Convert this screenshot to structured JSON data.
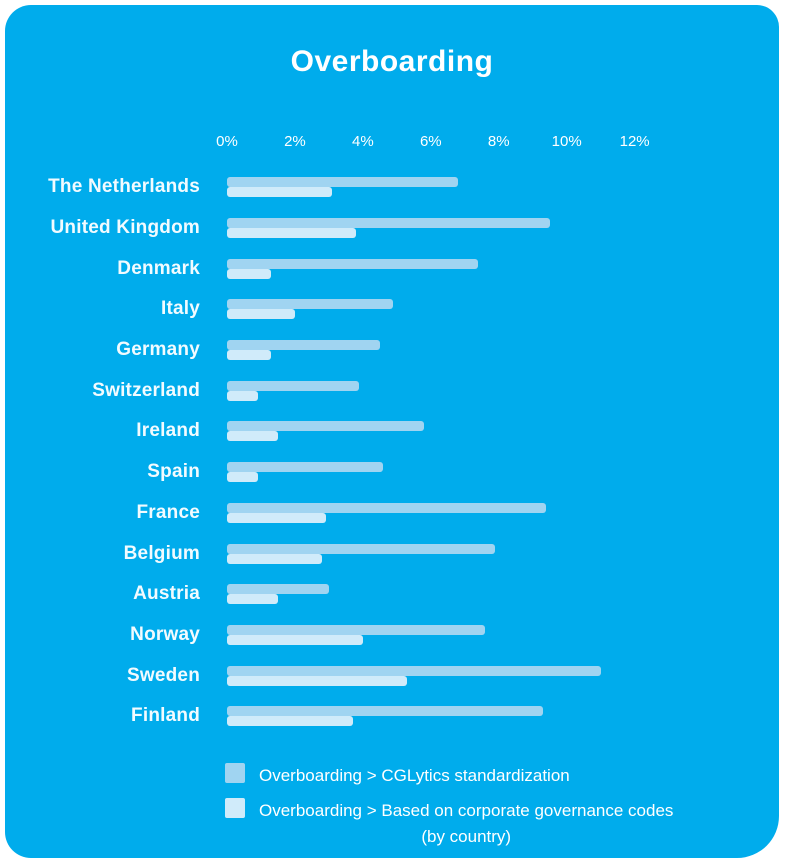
{
  "title": "Overboarding",
  "colors": {
    "background": "#00ACEC",
    "series1": "#A0D4F1",
    "series2": "#D0EBFA",
    "text": "#FFFFFF"
  },
  "chart_data": {
    "type": "bar",
    "orientation": "horizontal",
    "title": "Overboarding",
    "xlabel": "",
    "ylabel": "",
    "x_ticks": [
      "0%",
      "2%",
      "4%",
      "6%",
      "8%",
      "10%",
      "12%"
    ],
    "x_tick_values": [
      0,
      2,
      4,
      6,
      8,
      10,
      12
    ],
    "xlim": [
      0,
      13.1
    ],
    "grid": false,
    "legend_position": "bottom",
    "categories": [
      "The Netherlands",
      "United Kingdom",
      "Denmark",
      "Italy",
      "Germany",
      "Switzerland",
      "Ireland",
      "Spain",
      "France",
      "Belgium",
      "Austria",
      "Norway",
      "Sweden",
      "Finland"
    ],
    "series": [
      {
        "name": "Overboarding > CGLytics standardization",
        "values": [
          6.8,
          9.5,
          7.4,
          4.9,
          4.5,
          3.9,
          5.8,
          4.6,
          9.4,
          7.9,
          3.0,
          7.6,
          11.0,
          9.3
        ]
      },
      {
        "name": "Overboarding > Based on corporate governance codes (by country)",
        "values": [
          3.1,
          3.8,
          1.3,
          2.0,
          1.3,
          0.9,
          1.5,
          0.9,
          2.9,
          2.8,
          1.5,
          4.0,
          5.3,
          3.7
        ]
      }
    ]
  },
  "legend": {
    "items": [
      {
        "line1": "Overboarding > CGLytics standardization",
        "line2": ""
      },
      {
        "line1": "Overboarding > Based on corporate governance codes",
        "line2": "(by country)"
      }
    ]
  }
}
